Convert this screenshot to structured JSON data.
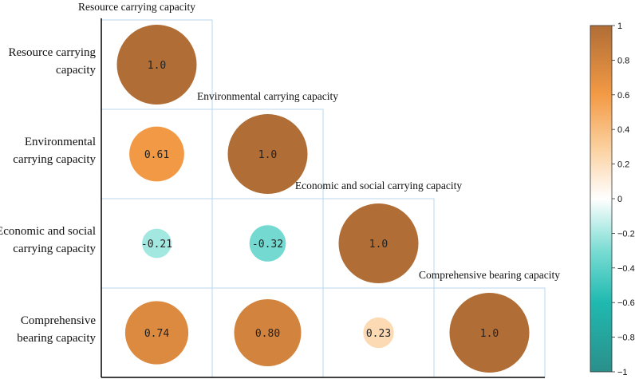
{
  "chart_data": {
    "type": "heatmap",
    "subtype": "correlation-circle-lower-triangle",
    "variables": [
      "Resource carrying capacity",
      "Environmental carrying capacity",
      "Economic and social carrying capacity",
      "Comprehensive bearing capacity"
    ],
    "row_labels": [
      [
        "Resource carrying",
        "capacity"
      ],
      [
        "Environmental",
        "carrying capacity"
      ],
      [
        "Economic and social",
        "carrying capacity"
      ],
      [
        "Comprehensive",
        "bearing capacity"
      ]
    ],
    "column_labels": [
      "Resource carrying capacity",
      "Environmental carrying capacity",
      "Economic and social carrying capacity",
      "Comprehensive bearing capacity"
    ],
    "cells": [
      {
        "row": 0,
        "col": 0,
        "value": 1.0,
        "label": "1.0"
      },
      {
        "row": 1,
        "col": 0,
        "value": 0.61,
        "label": "0.61"
      },
      {
        "row": 1,
        "col": 1,
        "value": 1.0,
        "label": "1.0"
      },
      {
        "row": 2,
        "col": 0,
        "value": -0.21,
        "label": "-0.21"
      },
      {
        "row": 2,
        "col": 1,
        "value": -0.32,
        "label": "-0.32"
      },
      {
        "row": 2,
        "col": 2,
        "value": 1.0,
        "label": "1.0"
      },
      {
        "row": 3,
        "col": 0,
        "value": 0.74,
        "label": "0.74"
      },
      {
        "row": 3,
        "col": 1,
        "value": 0.8,
        "label": "0.80"
      },
      {
        "row": 3,
        "col": 2,
        "value": 0.23,
        "label": "0.23"
      },
      {
        "row": 3,
        "col": 3,
        "value": 1.0,
        "label": "1.0"
      }
    ],
    "colorbar": {
      "range": [
        -1,
        1
      ],
      "ticks": [
        "1",
        "0.8",
        "0.6",
        "0.4",
        "0.2",
        "0",
        "−0.2",
        "−0.4",
        "−0.6",
        "−0.8",
        "−1"
      ],
      "tick_values": [
        1,
        0.8,
        0.6,
        0.4,
        0.2,
        0,
        -0.2,
        -0.4,
        -0.6,
        -0.8,
        -1
      ],
      "colors": [
        {
          "v": -1.0,
          "c": "#2b8f8a"
        },
        {
          "v": -0.6,
          "c": "#1fb9b0"
        },
        {
          "v": -0.3,
          "c": "#7adcd3"
        },
        {
          "v": 0.0,
          "c": "#ffffff"
        },
        {
          "v": 0.3,
          "c": "#fbcf9c"
        },
        {
          "v": 0.6,
          "c": "#f39a45"
        },
        {
          "v": 1.0,
          "c": "#b06d36"
        }
      ]
    },
    "colors": {
      "grid_line": "#b8d7ee",
      "axis_line": "#000000"
    }
  }
}
